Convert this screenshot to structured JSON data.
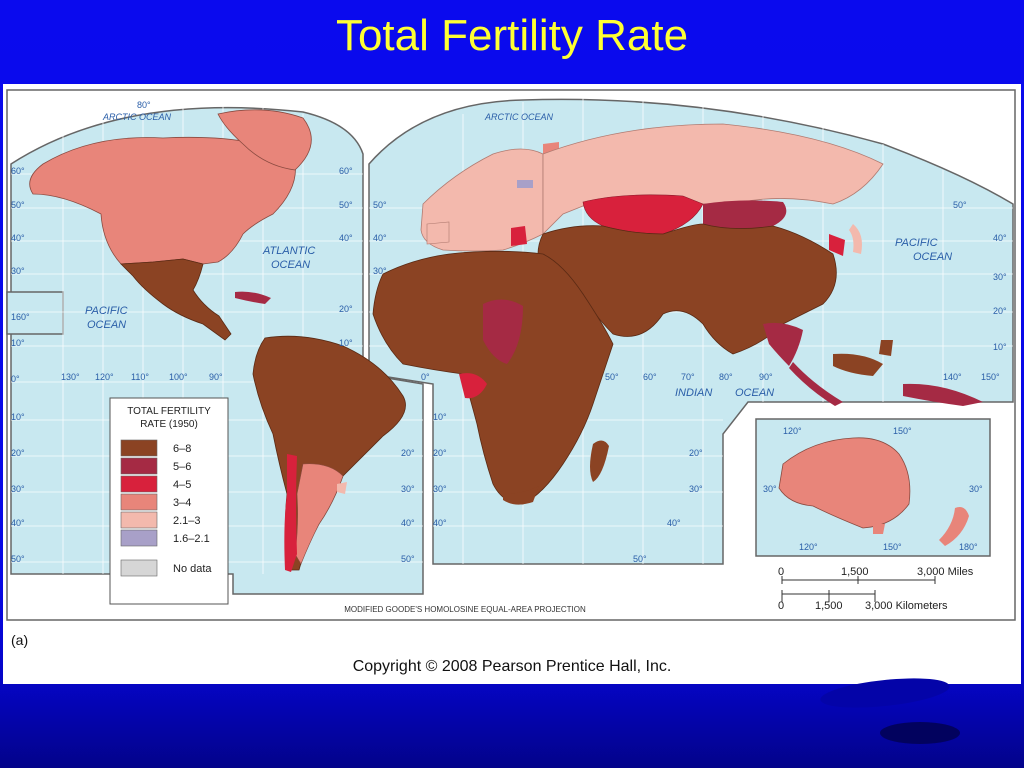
{
  "slide": {
    "title": "Total Fertility Rate"
  },
  "figure": {
    "caption": "(a)",
    "copyright": "Copyright © 2008 Pearson Prentice Hall, Inc.",
    "projection": "MODIFIED GOODE'S HOMOLOSINE EQUAL-AREA PROJECTION"
  },
  "map_labels": {
    "arctic_left": "ARCTIC OCEAN",
    "arctic_right": "ARCTIC OCEAN",
    "atlantic": [
      "ATLANTIC",
      "OCEAN"
    ],
    "pacific_left": [
      "PACIFIC",
      "OCEAN"
    ],
    "pacific_right": [
      "PACIFIC",
      "OCEAN"
    ],
    "indian": "INDIAN",
    "indian_ocean": "OCEAN",
    "lat_left": [
      "60°",
      "50°",
      "40°",
      "30°",
      "20°",
      "10°",
      "0°",
      "10°",
      "20°",
      "30°",
      "40°",
      "50°"
    ],
    "lat_mid": [
      "60°",
      "50°",
      "40°",
      "30°",
      "20°",
      "10°",
      "10°",
      "20°",
      "30°",
      "40°",
      "50°"
    ],
    "lon_bottom": [
      "130°",
      "120°",
      "110°",
      "100°",
      "90°"
    ],
    "lon_right": [
      "50°",
      "60°",
      "70°",
      "80°",
      "90°"
    ],
    "lon_extra": [
      "140°",
      "150°"
    ],
    "lat_right": [
      "50°",
      "40°",
      "30°",
      "20°",
      "10°"
    ],
    "top_80": "80°",
    "left_160": "160°",
    "africa_lat": [
      "10°",
      "20°",
      "30°",
      "40°",
      "50°",
      "0°"
    ],
    "oz_labels": [
      "120°",
      "150°",
      "30°",
      "30°",
      "120°",
      "150°",
      "180°"
    ]
  },
  "legend": {
    "title_line1": "TOTAL FERTILITY",
    "title_line2": "RATE (1950)",
    "items": [
      {
        "label": "6–8",
        "color": "#8b4323"
      },
      {
        "label": "5–6",
        "color": "#a52a44"
      },
      {
        "label": "4–5",
        "color": "#d8213c"
      },
      {
        "label": "3–4",
        "color": "#e8857a"
      },
      {
        "label": "2.1–3",
        "color": "#f3b9ad"
      },
      {
        "label": "1.6–2.1",
        "color": "#a8a0c8"
      },
      {
        "label": "No data",
        "color": "#d6d6d6"
      }
    ]
  },
  "scale": {
    "miles": [
      "0",
      "1,500",
      "3,000 Miles"
    ],
    "km": [
      "0",
      "1,500",
      "3,000 Kilometers"
    ]
  },
  "colors": {
    "ocean": "#c8e8f0",
    "grid": "#ffffff",
    "border": "#555555"
  }
}
